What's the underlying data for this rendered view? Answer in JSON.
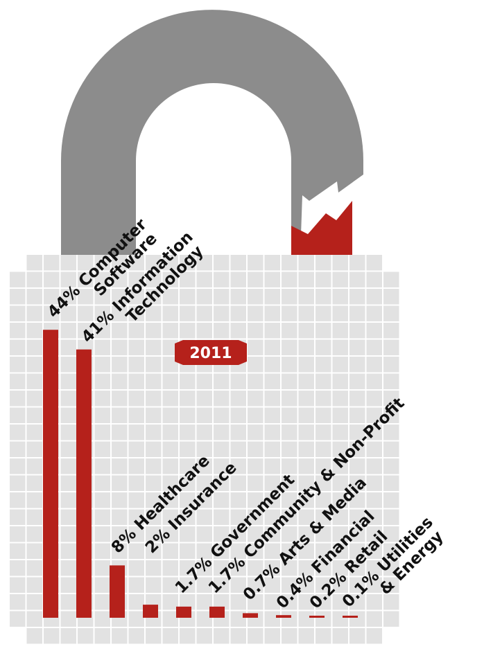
{
  "chart_data": {
    "type": "bar",
    "year": "2011",
    "categories": [
      "Computer Software",
      "Information Technology",
      "Healthcare",
      "Insurance",
      "Government",
      "Community & Non-Profit",
      "Arts & Media",
      "Financial",
      "Retail",
      "Utilities & Energy"
    ],
    "values": [
      44,
      41,
      8,
      2,
      1.7,
      1.7,
      0.7,
      0.4,
      0.2,
      0.1
    ],
    "labels": [
      [
        "44% Computer",
        "Software"
      ],
      [
        "41% Information",
        "Technology"
      ],
      [
        "8% Healthcare"
      ],
      [
        "2% Insurance"
      ],
      [
        "1.7% Government"
      ],
      [
        "1.7% Community & Non-Profit"
      ],
      [
        "0.7% Arts & Media"
      ],
      [
        "0.4% Financial"
      ],
      [
        "0.2% Retail"
      ],
      [
        "0.1% Utilities",
        "& Energy"
      ]
    ],
    "ylim": [
      0,
      50
    ],
    "colors": {
      "bar": "#b5211b",
      "grid": "#e2e2e2",
      "shackle": "#8c8c8c",
      "year_badge": "#b5211b"
    }
  }
}
